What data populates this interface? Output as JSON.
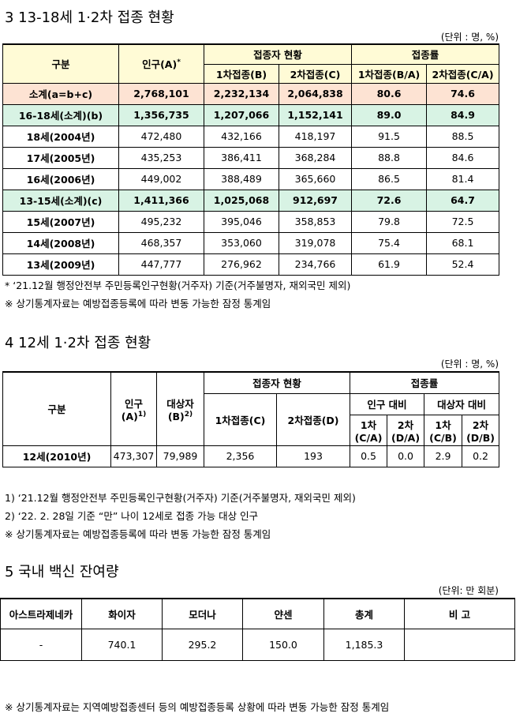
{
  "sec3": {
    "title": "3  13-18세 1·2차 접종 현황",
    "unit": "(단위 : 명, %)",
    "header": {
      "group": "구분",
      "pop": {
        "text": "인구(A)",
        "sup": "*"
      },
      "vaccinated": "접종자 현황",
      "dose1": "1차접종(B)",
      "dose2": "2차접종(C)",
      "rate": "접종률",
      "rate1": "1차접종(B/A)",
      "rate2": "2차접종(C/A)"
    },
    "rows": [
      [
        "소계(a=b+c)",
        "2,768,101",
        "2,232,134",
        "2,064,838",
        "80.6",
        "74.6"
      ],
      [
        "16-18세(소계)(b)",
        "1,356,735",
        "1,207,066",
        "1,152,141",
        "89.0",
        "84.9"
      ],
      [
        "18세(2004년)",
        "472,480",
        "432,166",
        "418,197",
        "91.5",
        "88.5"
      ],
      [
        "17세(2005년)",
        "435,253",
        "386,411",
        "368,284",
        "88.8",
        "84.6"
      ],
      [
        "16세(2006년)",
        "449,002",
        "388,489",
        "365,660",
        "86.5",
        "81.4"
      ],
      [
        "13-15세(소계)(c)",
        "1,411,366",
        "1,025,068",
        "912,697",
        "72.6",
        "64.7"
      ],
      [
        "15세(2007년)",
        "495,232",
        "395,046",
        "358,853",
        "79.8",
        "72.5"
      ],
      [
        "14세(2008년)",
        "468,357",
        "353,060",
        "319,078",
        "75.4",
        "68.1"
      ],
      [
        "13세(2009년)",
        "447,777",
        "276,962",
        "234,766",
        "61.9",
        "52.4"
      ]
    ],
    "notes": [
      "* ‘21.12월 행정안전부 주민등록인구현황(거주자) 기준(거주불명자, 재외국민 제외)",
      "※ 상기통계자료는 예방접종등록에 따라 변동 가능한 잠정 통계임"
    ]
  },
  "sec4": {
    "title": "4  12세 1·2차 접종 현황",
    "unit": "(단위 : 명, %)",
    "header": {
      "group": "구분",
      "pop": {
        "lines": [
          "인구",
          "(A)"
        ],
        "sup": "1)"
      },
      "target": {
        "lines": [
          "대상자",
          "(B)"
        ],
        "sup": "2)"
      },
      "vaccinated": "접종자 현황",
      "dose1": "1차접종(C)",
      "dose2": "2차접종(D)",
      "rate": "접종률",
      "vs_pop": "인구 대비",
      "vs_target": "대상자 대비",
      "r1": {
        "lines": [
          "1차",
          "(C/A)"
        ]
      },
      "r2": {
        "lines": [
          "2차",
          "(D/A)"
        ]
      },
      "r3": {
        "lines": [
          "1차",
          "(C/B)"
        ]
      },
      "r4": {
        "lines": [
          "2차",
          "(D/B)"
        ]
      }
    },
    "rows": [
      [
        "12세(2010년)",
        "473,307",
        "79,989",
        "2,356",
        "193",
        "0.5",
        "0.0",
        "2.9",
        "0.2"
      ]
    ],
    "notes": [
      "1) ‘21.12월 행정안전부 주민등록인구현황(거주자) 기준(거주불명자, 재외국민 제외)",
      "2) ‘22. 2. 28일 기준 “만” 나이 12세로 접종 가능 대상 인구",
      "※ 상기통계자료는 예방접종등록에 따라 변동 가능한 잠정 통계임"
    ]
  },
  "sec5": {
    "title": "5  국내 백신 잔여량",
    "unit": "(단위: 만 회분)",
    "header": [
      "아스트라제네카",
      "화이자",
      "모더나",
      "얀센",
      "총계",
      "비 고"
    ],
    "row": [
      "-",
      "740.1",
      "295.2",
      "150.0",
      "1,185.3"
    ],
    "notes": [
      "※ 상기통계자료는 지역예방접종센터 등의 예방접종등록 상황에 따라 변동 가능한 잠정 통계임"
    ]
  }
}
